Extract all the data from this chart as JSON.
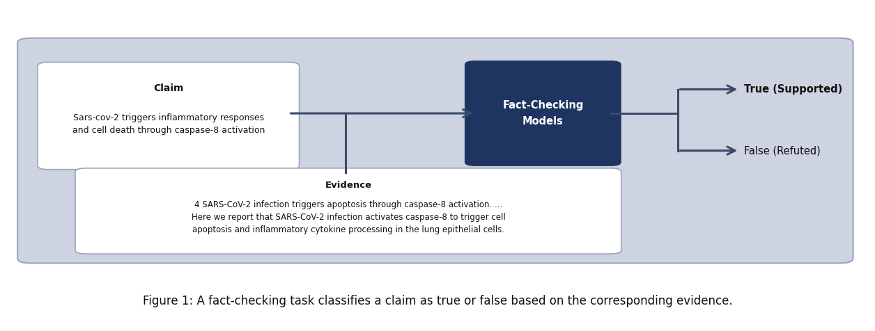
{
  "bg_color": "#ffffff",
  "panel_bg": "#cdd3e0",
  "panel_border": "#9aa4bc",
  "claim_box_bg": "#ffffff",
  "claim_box_border": "#9aa4bc",
  "evidence_box_bg": "#ffffff",
  "evidence_box_border": "#9aa4bc",
  "fc_box_bg": "#1e3461",
  "fc_box_text_color": "#ffffff",
  "arrow_color": "#3a4a6b",
  "output_text_color": "#111111",
  "claim_title": "Claim",
  "claim_text": "Sars-cov-2 triggers inflammatory responses\nand cell death through caspase-8 activation",
  "fc_title": "Fact-Checking\nModels",
  "evidence_title": "Evidence",
  "evidence_text": "4 SARS-CoV-2 infection triggers apoptosis through caspase-8 activation. ...\nHere we report that SARS-CoV-2 infection activates caspase-8 to trigger cell\napoptosis and inflammatory cytokine processing in the lung epithelial cells.",
  "true_label": "True (Supported)",
  "false_label": "False (Refuted)",
  "caption": "Figure 1: A fact-checking task classifies a claim as true or false based on the corresponding evidence.",
  "figsize": [
    12.56,
    4.76
  ],
  "dpi": 100
}
